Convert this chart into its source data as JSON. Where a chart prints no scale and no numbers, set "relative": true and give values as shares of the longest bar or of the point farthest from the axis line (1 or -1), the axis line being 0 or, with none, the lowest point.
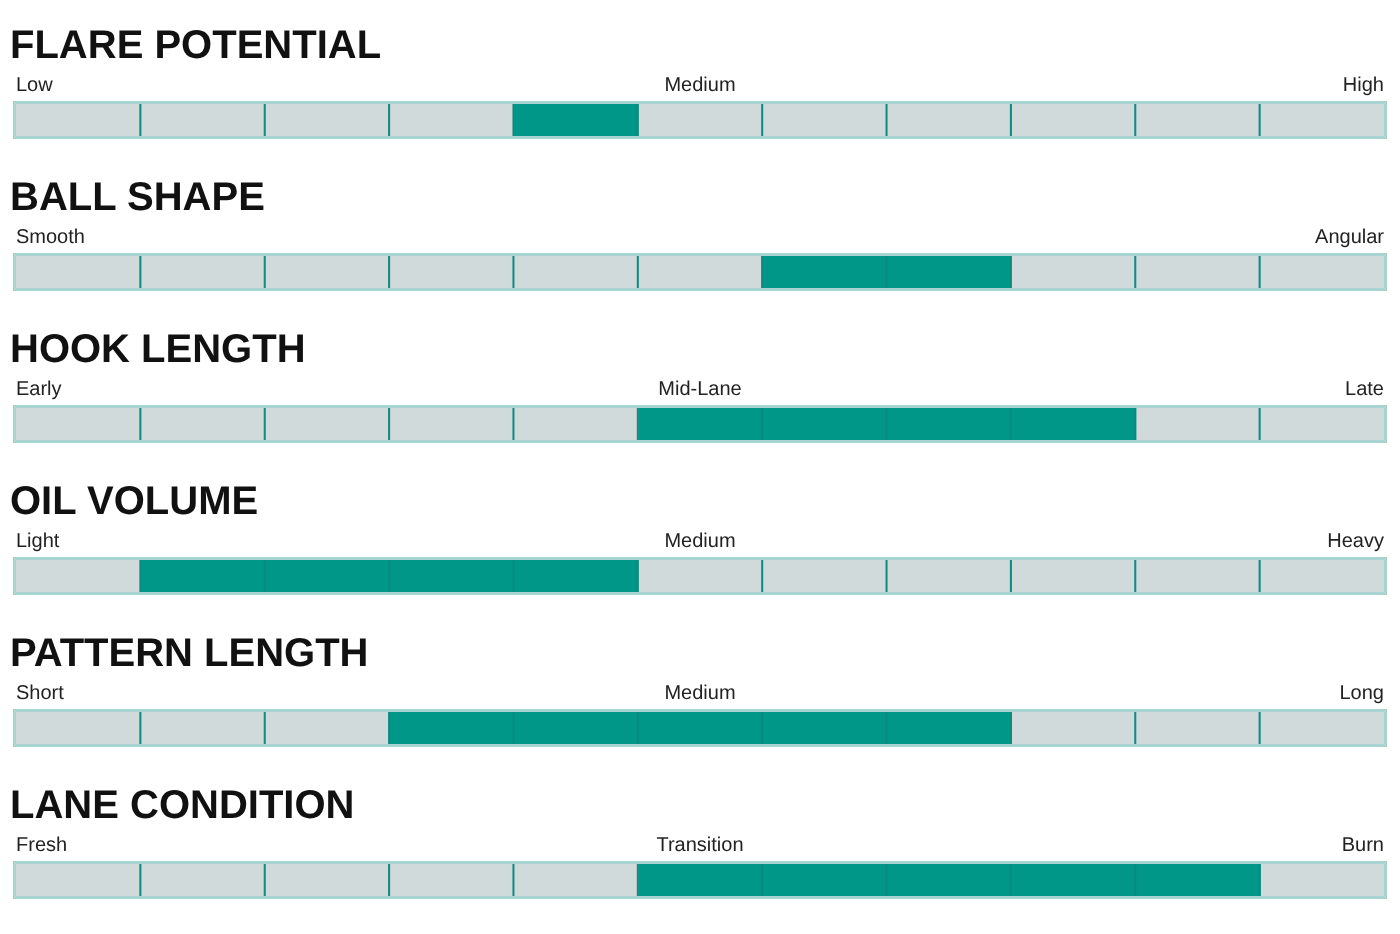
{
  "chart_data": [
    {
      "type": "bar",
      "orientation": "horizontal",
      "relative": true,
      "stacked": true,
      "title": "FLARE POTENTIAL",
      "categories": [
        null
      ],
      "annotations": [
        "Low",
        "Medium",
        "High"
      ],
      "series": [
        {
          "color": "#d0dada",
          "values": [
            0.364
          ]
        },
        {
          "color": "#009688",
          "values": [
            0.091
          ]
        },
        {
          "color": "#d0dada",
          "values": [
            0.545
          ]
        }
      ]
    },
    {
      "type": "bar",
      "orientation": "horizontal",
      "relative": true,
      "stacked": true,
      "title": "BALL SHAPE",
      "categories": [
        null
      ],
      "annotations": [
        "Smooth",
        "Angular"
      ],
      "series": [
        {
          "color": "#d0dada",
          "values": [
            0.545
          ]
        },
        {
          "color": "#009688",
          "values": [
            0.182
          ]
        },
        {
          "color": "#d0dada",
          "values": [
            0.273
          ]
        }
      ]
    },
    {
      "type": "bar",
      "orientation": "horizontal",
      "relative": true,
      "stacked": true,
      "title": "HOOK LENGTH",
      "categories": [
        null
      ],
      "annotations": [
        "Early",
        "Mid-Lane",
        "Late"
      ],
      "series": [
        {
          "color": "#d0dada",
          "values": [
            0.455
          ]
        },
        {
          "color": "#009688",
          "values": [
            0.364
          ]
        },
        {
          "color": "#d0dada",
          "values": [
            0.181
          ]
        }
      ]
    },
    {
      "type": "bar",
      "orientation": "horizontal",
      "relative": true,
      "stacked": true,
      "title": "OIL VOLUME",
      "categories": [
        null
      ],
      "annotations": [
        "Light",
        "Medium",
        "Heavy"
      ],
      "series": [
        {
          "color": "#d0dada",
          "values": [
            0.091
          ]
        },
        {
          "color": "#009688",
          "values": [
            0.364
          ]
        },
        {
          "color": "#d0dada",
          "values": [
            0.545
          ]
        }
      ]
    },
    {
      "type": "bar",
      "orientation": "horizontal",
      "relative": true,
      "stacked": true,
      "title": "PATTERN LENGTH",
      "categories": [
        null
      ],
      "annotations": [
        "Short",
        "Medium",
        "Long"
      ],
      "series": [
        {
          "color": "#d0dada",
          "values": [
            0.273
          ]
        },
        {
          "color": "#009688",
          "values": [
            0.455
          ]
        },
        {
          "color": "#d0dada",
          "values": [
            0.272
          ]
        }
      ]
    },
    {
      "type": "bar",
      "orientation": "horizontal",
      "relative": true,
      "stacked": true,
      "title": "LANE CONDITION",
      "categories": [
        null
      ],
      "annotations": [
        "Fresh",
        "Transition",
        "Burn"
      ],
      "series": [
        {
          "color": "#d0dada",
          "values": [
            0.455
          ]
        },
        {
          "color": "#009688",
          "values": [
            0.455
          ]
        },
        {
          "color": "#d0dada",
          "values": [
            0.09
          ]
        }
      ]
    }
  ]
}
